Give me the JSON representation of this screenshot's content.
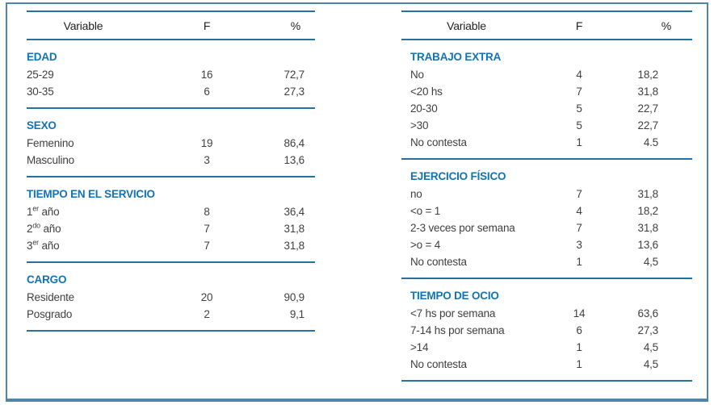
{
  "figure": {
    "accent_color": "#1173b7",
    "rule_color": "#27719f",
    "border_color": "#4d86a8",
    "text_color": "#3f3f3f"
  },
  "tables": [
    {
      "id": "left",
      "header": {
        "variable": "Variable",
        "f": "F",
        "pct": "%"
      },
      "sections": [
        {
          "title": "EDAD",
          "rows": [
            {
              "label": "25-29",
              "f": "16",
              "pct": "72,7"
            },
            {
              "label": "30-35",
              "f": "6",
              "pct": "27,3"
            }
          ]
        },
        {
          "title": "SEXO",
          "rows": [
            {
              "label": "Femenino",
              "f": "19",
              "pct": "86,4"
            },
            {
              "label": "Masculino",
              "f": "3",
              "pct": "13,6"
            }
          ]
        },
        {
          "title": "TIEMPO EN EL SERVICIO",
          "rows": [
            {
              "label_base": "1",
              "label_sup": "er",
              "label_rest": " año",
              "f": "8",
              "pct": "36,4"
            },
            {
              "label_base": "2",
              "label_sup": "do",
              "label_rest": " año",
              "f": "7",
              "pct": "31,8"
            },
            {
              "label_base": "3",
              "label_sup": "er",
              "label_rest": " año",
              "f": "7",
              "pct": "31,8"
            }
          ]
        },
        {
          "title": "CARGO",
          "rows": [
            {
              "label": "Residente",
              "f": "20",
              "pct": "90,9"
            },
            {
              "label": "Posgrado",
              "f": "2",
              "pct": "9,1"
            }
          ]
        }
      ]
    },
    {
      "id": "right",
      "header": {
        "variable": "Variable",
        "f": "F",
        "pct": "%"
      },
      "sections": [
        {
          "title": "TRABAJO EXTRA",
          "rows": [
            {
              "label": "No",
              "f": "4",
              "pct": "18,2"
            },
            {
              "label": "<20 hs",
              "f": "7",
              "pct": "31,8"
            },
            {
              "label": "20-30",
              "f": "5",
              "pct": "22,7"
            },
            {
              "label": ">30",
              "f": "5",
              "pct": "22,7"
            },
            {
              "label": "No contesta",
              "f": "1",
              "pct": "4.5"
            }
          ]
        },
        {
          "title": "EJERCICIO FÍSICO",
          "rows": [
            {
              "label": "no",
              "f": "7",
              "pct": "31,8"
            },
            {
              "label": "<o = 1",
              "f": "4",
              "pct": "18,2"
            },
            {
              "label": "2-3 veces por semana",
              "f": "7",
              "pct": "31,8"
            },
            {
              "label": ">o = 4",
              "f": "3",
              "pct": "13,6"
            },
            {
              "label": "No contesta",
              "f": "1",
              "pct": "4,5"
            }
          ]
        },
        {
          "title": "TIEMPO DE OCIO",
          "rows": [
            {
              "label": "<7 hs por semana",
              "f": "14",
              "pct": "63,6"
            },
            {
              "label": "7-14 hs por semana",
              "f": "6",
              "pct": "27,3"
            },
            {
              "label": ">14",
              "f": "1",
              "pct": "4,5"
            },
            {
              "label": "No contesta",
              "f": "1",
              "pct": "4,5"
            }
          ]
        }
      ]
    }
  ]
}
